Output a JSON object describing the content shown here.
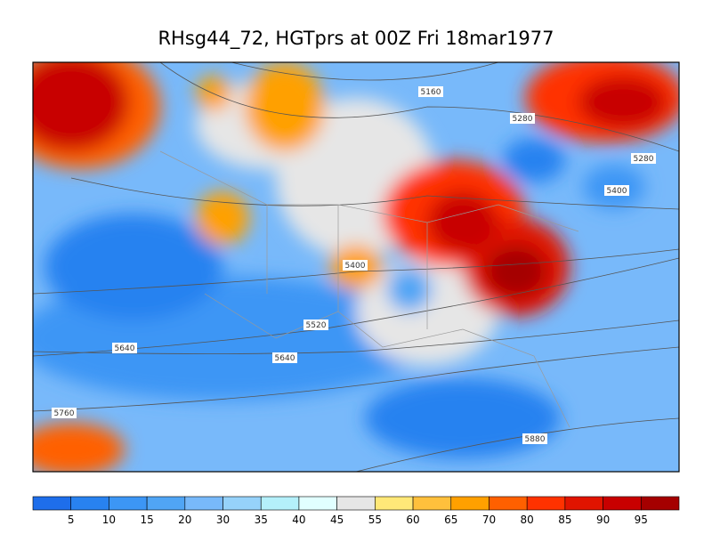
{
  "title": "RHsg44_72, HGTprs at 00Z Fri 18mar1977",
  "map": {
    "contour_labels": [
      "5160",
      "5280",
      "5280",
      "5400",
      "5400",
      "5520",
      "5640",
      "5640",
      "5760",
      "5880"
    ]
  },
  "colorbar": {
    "levels": [
      5,
      10,
      15,
      20,
      30,
      35,
      40,
      45,
      55,
      60,
      65,
      70,
      80,
      85,
      90,
      95
    ],
    "colors": [
      "#1e6eeb",
      "#2882f0",
      "#3c96f5",
      "#50a5f5",
      "#78b9fa",
      "#96d2fa",
      "#b4f0fa",
      "#e1ffff",
      "#e6e6e6",
      "#ffe878",
      "#ffc03c",
      "#ffa000",
      "#ff6000",
      "#ff3200",
      "#e11400",
      "#c80000",
      "#a50000"
    ]
  }
}
